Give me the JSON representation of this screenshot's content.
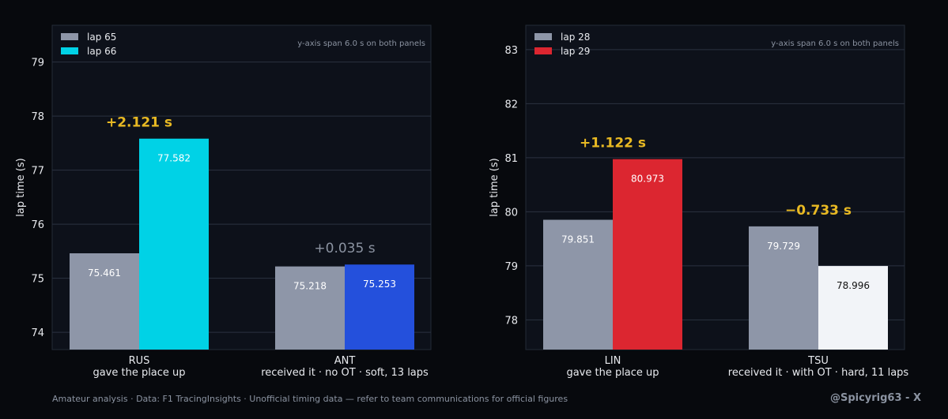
{
  "colors": {
    "background": "#07090d",
    "panel": "#0d111a",
    "grid": "#2b3240",
    "text": "#e8eaee",
    "muted": "#8b93a1",
    "highlight": "#e8b923",
    "bar_before": "#8e96a8"
  },
  "chart_data": [
    {
      "type": "bar",
      "ylabel": "lap time  (s)",
      "ylim": [
        73.68,
        79.68
      ],
      "yticks": [
        74,
        75,
        76,
        77,
        78,
        79
      ],
      "grid": true,
      "legend_position": "top-left",
      "note": "y-axis span 6.0 s on both panels",
      "categories": [
        "RUS",
        "ANT"
      ],
      "category_subtitles": [
        "gave the place up",
        "received it  ·  no OT  ·  soft, 13 laps"
      ],
      "series": [
        {
          "name": "lap 65",
          "values": [
            75.461,
            75.218
          ],
          "colors": [
            "#8e96a8",
            "#8e96a8"
          ]
        },
        {
          "name": "lap 66",
          "values": [
            77.582,
            75.253
          ],
          "colors": [
            "#00d2e6",
            "#2450dc"
          ]
        }
      ],
      "legend_colors": [
        "#8e96a8",
        "#00d2e6"
      ],
      "value_label_colors": [
        "#ffffff",
        "#ffffff"
      ],
      "deltas": [
        {
          "text": "+2.121 s",
          "color": "#e8b923",
          "bold": true
        },
        {
          "text": "+0.035 s",
          "color": "#8b93a1",
          "bold": false
        }
      ]
    },
    {
      "type": "bar",
      "ylabel": "lap time  (s)",
      "ylim": [
        77.45,
        83.45
      ],
      "yticks": [
        78,
        79,
        80,
        81,
        82,
        83
      ],
      "grid": true,
      "legend_position": "top-left",
      "note": "y-axis span 6.0 s on both panels",
      "categories": [
        "LIN",
        "TSU"
      ],
      "category_subtitles": [
        "gave the place up",
        "received it  ·  with OT  ·  hard, 11 laps"
      ],
      "series": [
        {
          "name": "lap 28",
          "values": [
            79.851,
            79.729
          ],
          "colors": [
            "#8e96a8",
            "#8e96a8"
          ]
        },
        {
          "name": "lap 29",
          "values": [
            80.973,
            78.996
          ],
          "colors": [
            "#dc2630",
            "#f2f4f8"
          ]
        }
      ],
      "legend_colors": [
        "#8e96a8",
        "#dc2630"
      ],
      "value_label_colors": [
        "#ffffff",
        "#111111"
      ],
      "deltas": [
        {
          "text": "+1.122 s",
          "color": "#e8b923",
          "bold": true
        },
        {
          "text": "−0.733 s",
          "color": "#e8b923",
          "bold": true
        }
      ]
    }
  ],
  "footer": "Amateur analysis · Data: F1 TracingInsights · Unofficial timing data — refer to team communications for official figures",
  "handle": "@Spicyrig63 - X"
}
